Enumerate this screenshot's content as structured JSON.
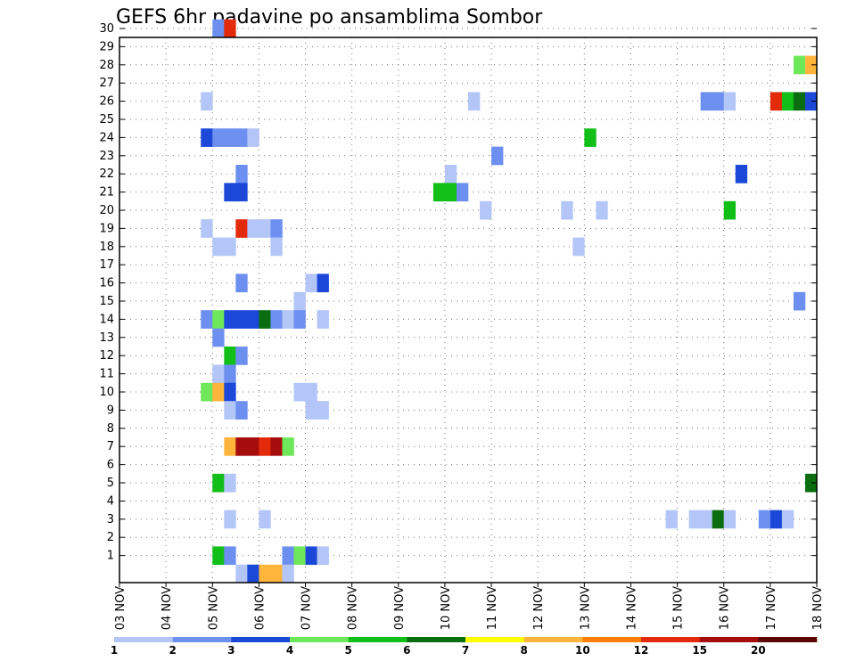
{
  "chart_data": {
    "type": "heatmap",
    "title": "GEFS 6hr padavine po ansamblima Sombor",
    "xlabel": "",
    "ylabel": "",
    "x_ticks": [
      "03 NOV",
      "04 NOV",
      "05 NOV",
      "06 NOV",
      "07 NOV",
      "08 NOV",
      "09 NOV",
      "10 NOV",
      "11 NOV",
      "12 NOV",
      "13 NOV",
      "14 NOV",
      "15 NOV",
      "16 NOV",
      "17 NOV",
      "18 NOV"
    ],
    "y_ticks": [
      1,
      2,
      3,
      4,
      5,
      6,
      7,
      8,
      9,
      10,
      11,
      12,
      13,
      14,
      15,
      16,
      17,
      18,
      19,
      20,
      21,
      22,
      23,
      24,
      25,
      26,
      27,
      28,
      29,
      30
    ],
    "time_step_hours": 6,
    "grid": true,
    "colorbar": {
      "position": "bottom",
      "tick_labels": [
        "1",
        "2",
        "3",
        "4",
        "5",
        "6",
        "7",
        "8",
        "10",
        "12",
        "15",
        "20"
      ],
      "colors": [
        "#b3c6f7",
        "#6d8ff0",
        "#1c48d8",
        "#6ee85a",
        "#11bf18",
        "#0a6e10",
        "#ffff00",
        "#ffb43c",
        "#ff7f00",
        "#e32a0a",
        "#a50d0d",
        "#5c0606"
      ]
    },
    "cells": [
      {
        "member": 30,
        "time": "05 NOV 00Z",
        "level": 2
      },
      {
        "member": 30,
        "time": "05 NOV 06Z",
        "level": 10
      },
      {
        "member": 28,
        "time": "17 NOV 12Z",
        "level": 4
      },
      {
        "member": 28,
        "time": "17 NOV 18Z",
        "level": 8
      },
      {
        "member": 26,
        "time": "04 NOV 18Z",
        "level": 1
      },
      {
        "member": 26,
        "time": "10 NOV 12Z",
        "level": 1
      },
      {
        "member": 26,
        "time": "15 NOV 12Z",
        "level": 2
      },
      {
        "member": 26,
        "time": "15 NOV 18Z",
        "level": 2
      },
      {
        "member": 26,
        "time": "16 NOV 00Z",
        "level": 1
      },
      {
        "member": 26,
        "time": "17 NOV 00Z",
        "level": 10
      },
      {
        "member": 26,
        "time": "17 NOV 06Z",
        "level": 5
      },
      {
        "member": 26,
        "time": "17 NOV 12Z",
        "level": 6
      },
      {
        "member": 26,
        "time": "17 NOV 18Z",
        "level": 3
      },
      {
        "member": 24,
        "time": "04 NOV 18Z",
        "level": 3
      },
      {
        "member": 24,
        "time": "05 NOV 00Z",
        "level": 2
      },
      {
        "member": 24,
        "time": "05 NOV 06Z",
        "level": 2
      },
      {
        "member": 24,
        "time": "05 NOV 12Z",
        "level": 2
      },
      {
        "member": 24,
        "time": "05 NOV 18Z",
        "level": 1
      },
      {
        "member": 24,
        "time": "13 NOV 00Z",
        "level": 5
      },
      {
        "member": 23,
        "time": "11 NOV 00Z",
        "level": 2
      },
      {
        "member": 22,
        "time": "05 NOV 12Z",
        "level": 2
      },
      {
        "member": 22,
        "time": "10 NOV 00Z",
        "level": 1
      },
      {
        "member": 22,
        "time": "16 NOV 06Z",
        "level": 3
      },
      {
        "member": 21,
        "time": "05 NOV 06Z",
        "level": 3
      },
      {
        "member": 21,
        "time": "05 NOV 12Z",
        "level": 3
      },
      {
        "member": 21,
        "time": "09 NOV 18Z",
        "level": 5
      },
      {
        "member": 21,
        "time": "10 NOV 00Z",
        "level": 5
      },
      {
        "member": 21,
        "time": "10 NOV 06Z",
        "level": 2
      },
      {
        "member": 20,
        "time": "10 NOV 18Z",
        "level": 1
      },
      {
        "member": 20,
        "time": "12 NOV 12Z",
        "level": 1
      },
      {
        "member": 20,
        "time": "13 NOV 06Z",
        "level": 1
      },
      {
        "member": 20,
        "time": "16 NOV 00Z",
        "level": 5
      },
      {
        "member": 19,
        "time": "04 NOV 18Z",
        "level": 1
      },
      {
        "member": 19,
        "time": "05 NOV 12Z",
        "level": 10
      },
      {
        "member": 19,
        "time": "05 NOV 18Z",
        "level": 1
      },
      {
        "member": 19,
        "time": "06 NOV 00Z",
        "level": 1
      },
      {
        "member": 19,
        "time": "06 NOV 06Z",
        "level": 2
      },
      {
        "member": 18,
        "time": "05 NOV 00Z",
        "level": 1
      },
      {
        "member": 18,
        "time": "05 NOV 06Z",
        "level": 1
      },
      {
        "member": 18,
        "time": "06 NOV 06Z",
        "level": 1
      },
      {
        "member": 18,
        "time": "12 NOV 18Z",
        "level": 1
      },
      {
        "member": 16,
        "time": "05 NOV 12Z",
        "level": 2
      },
      {
        "member": 16,
        "time": "07 NOV 00Z",
        "level": 1
      },
      {
        "member": 16,
        "time": "07 NOV 06Z",
        "level": 3
      },
      {
        "member": 15,
        "time": "06 NOV 18Z",
        "level": 1
      },
      {
        "member": 15,
        "time": "17 NOV 12Z",
        "level": 2
      },
      {
        "member": 14,
        "time": "04 NOV 18Z",
        "level": 2
      },
      {
        "member": 14,
        "time": "05 NOV 00Z",
        "level": 4
      },
      {
        "member": 14,
        "time": "05 NOV 06Z",
        "level": 3
      },
      {
        "member": 14,
        "time": "05 NOV 12Z",
        "level": 3
      },
      {
        "member": 14,
        "time": "05 NOV 18Z",
        "level": 3
      },
      {
        "member": 14,
        "time": "06 NOV 00Z",
        "level": 6
      },
      {
        "member": 14,
        "time": "06 NOV 06Z",
        "level": 2
      },
      {
        "member": 14,
        "time": "06 NOV 12Z",
        "level": 1
      },
      {
        "member": 14,
        "time": "06 NOV 18Z",
        "level": 2
      },
      {
        "member": 14,
        "time": "07 NOV 06Z",
        "level": 1
      },
      {
        "member": 13,
        "time": "05 NOV 00Z",
        "level": 2
      },
      {
        "member": 12,
        "time": "05 NOV 06Z",
        "level": 5
      },
      {
        "member": 12,
        "time": "05 NOV 12Z",
        "level": 2
      },
      {
        "member": 11,
        "time": "05 NOV 00Z",
        "level": 1
      },
      {
        "member": 11,
        "time": "05 NOV 06Z",
        "level": 2
      },
      {
        "member": 10,
        "time": "04 NOV 18Z",
        "level": 4
      },
      {
        "member": 10,
        "time": "05 NOV 00Z",
        "level": 8
      },
      {
        "member": 10,
        "time": "05 NOV 06Z",
        "level": 3
      },
      {
        "member": 10,
        "time": "06 NOV 18Z",
        "level": 1
      },
      {
        "member": 10,
        "time": "07 NOV 00Z",
        "level": 1
      },
      {
        "member": 9,
        "time": "05 NOV 06Z",
        "level": 1
      },
      {
        "member": 9,
        "time": "05 NOV 12Z",
        "level": 2
      },
      {
        "member": 9,
        "time": "07 NOV 00Z",
        "level": 1
      },
      {
        "member": 9,
        "time": "07 NOV 06Z",
        "level": 1
      },
      {
        "member": 7,
        "time": "05 NOV 06Z",
        "level": 8
      },
      {
        "member": 7,
        "time": "05 NOV 12Z",
        "level": 11
      },
      {
        "member": 7,
        "time": "05 NOV 18Z",
        "level": 11
      },
      {
        "member": 7,
        "time": "06 NOV 00Z",
        "level": 10
      },
      {
        "member": 7,
        "time": "06 NOV 06Z",
        "level": 11
      },
      {
        "member": 7,
        "time": "06 NOV 12Z",
        "level": 4
      },
      {
        "member": 5,
        "time": "05 NOV 00Z",
        "level": 5
      },
      {
        "member": 5,
        "time": "05 NOV 06Z",
        "level": 1
      },
      {
        "member": 5,
        "time": "17 NOV 18Z",
        "level": 6
      },
      {
        "member": 3,
        "time": "05 NOV 06Z",
        "level": 1
      },
      {
        "member": 3,
        "time": "06 NOV 00Z",
        "level": 1
      },
      {
        "member": 3,
        "time": "14 NOV 18Z",
        "level": 1
      },
      {
        "member": 3,
        "time": "15 NOV 06Z",
        "level": 1
      },
      {
        "member": 3,
        "time": "15 NOV 12Z",
        "level": 1
      },
      {
        "member": 3,
        "time": "15 NOV 18Z",
        "level": 6
      },
      {
        "member": 3,
        "time": "16 NOV 00Z",
        "level": 1
      },
      {
        "member": 3,
        "time": "16 NOV 18Z",
        "level": 2
      },
      {
        "member": 3,
        "time": "17 NOV 00Z",
        "level": 3
      },
      {
        "member": 3,
        "time": "17 NOV 06Z",
        "level": 1
      },
      {
        "member": 1,
        "time": "05 NOV 00Z",
        "level": 5
      },
      {
        "member": 1,
        "time": "05 NOV 06Z",
        "level": 2
      },
      {
        "member": 1,
        "time": "06 NOV 12Z",
        "level": 2
      },
      {
        "member": 1,
        "time": "06 NOV 18Z",
        "level": 4
      },
      {
        "member": 1,
        "time": "07 NOV 00Z",
        "level": 3
      },
      {
        "member": 1,
        "time": "07 NOV 06Z",
        "level": 1
      },
      {
        "member": 0,
        "time": "05 NOV 12Z",
        "level": 1
      },
      {
        "member": 0,
        "time": "05 NOV 18Z",
        "level": 3
      },
      {
        "member": 0,
        "time": "06 NOV 00Z",
        "level": 8
      },
      {
        "member": 0,
        "time": "06 NOV 06Z",
        "level": 8
      },
      {
        "member": 0,
        "time": "06 NOV 12Z",
        "level": 1
      }
    ]
  }
}
